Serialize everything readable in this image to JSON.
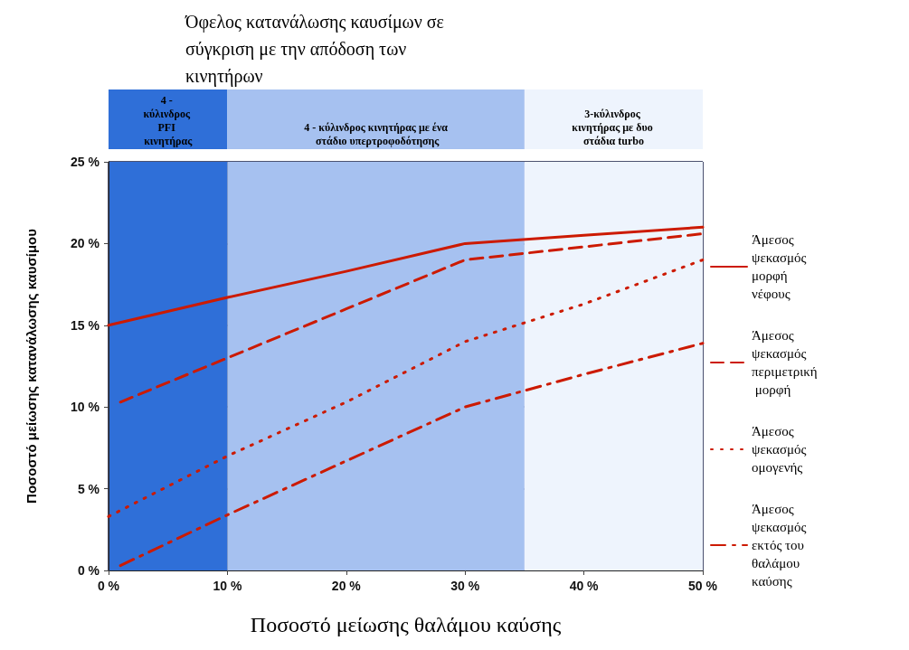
{
  "chart_data": {
    "type": "line",
    "title": "Όφελος κατανάλωσης καυσίμων σε σύγκριση με την απόδοση των κινητήρων",
    "xlabel": "Ποσοστό μείωσης θαλάμου καύσης",
    "ylabel": "Ποσοστό μείωσης κατανάλωσης καυσίμου",
    "xlim": [
      0,
      50
    ],
    "ylim": [
      0,
      25
    ],
    "xticks": [
      {
        "value": 0,
        "label": "0 %"
      },
      {
        "value": 10,
        "label": "10 %"
      },
      {
        "value": 20,
        "label": "20 %"
      },
      {
        "value": 30,
        "label": "30 %"
      },
      {
        "value": 40,
        "label": "40 %"
      },
      {
        "value": 50,
        "label": "50 %"
      }
    ],
    "yticks": [
      {
        "value": 0,
        "label": "0 %"
      },
      {
        "value": 5,
        "label": "5 %"
      },
      {
        "value": 10,
        "label": "10 %"
      },
      {
        "value": 15,
        "label": "15 %"
      },
      {
        "value": 20,
        "label": "20 %"
      },
      {
        "value": 25,
        "label": "25 %"
      }
    ],
    "grid": true,
    "legend": "right",
    "marker": "none",
    "bands": [
      {
        "axis": "x",
        "from": 0,
        "to": 10,
        "label": "4 - κύλινδρος PFI κινητήρας",
        "color": "#2f6fd8"
      },
      {
        "axis": "x",
        "from": 10,
        "to": 35,
        "label": "4 - κύλινδρος κινητήρας με ένα στάδιο υπερτροφοδότησης",
        "color": "#a6c1f0"
      },
      {
        "axis": "x",
        "from": 35,
        "to": 50,
        "label": "3-κύλινδρος κινητήρας με δυο στάδια turbo",
        "color": "#eef4fd"
      }
    ],
    "series": [
      {
        "name": "Άμεσος ψεκασμός μορφή νέφους",
        "color": "#cc1a00",
        "line_style": "solid",
        "x": [
          0,
          10,
          20,
          30,
          40,
          50
        ],
        "values": [
          15,
          16.7,
          18.3,
          20,
          20.5,
          21
        ]
      },
      {
        "name": "Άμεσος ψεκασμός περιμετρική μορφή",
        "color": "#cc1a00",
        "line_style": "dashed",
        "x": [
          1,
          10,
          20,
          30,
          40,
          50
        ],
        "values": [
          10.3,
          13,
          16,
          19,
          19.8,
          20.6
        ]
      },
      {
        "name": "Άμεσος ψεκασμός ομογενής",
        "color": "#cc1a00",
        "line_style": "dotted",
        "x": [
          0,
          10,
          20,
          30,
          40,
          50
        ],
        "values": [
          3.3,
          7,
          10.3,
          14,
          16.3,
          19
        ]
      },
      {
        "name": "Άμεσος ψεκασμός εκτός του θαλάμου καύσης",
        "color": "#cc1a00",
        "line_style": "dashdot",
        "x": [
          1,
          10,
          20,
          30,
          40,
          50
        ],
        "values": [
          0.3,
          3.4,
          6.7,
          10,
          12,
          13.9
        ]
      }
    ]
  }
}
